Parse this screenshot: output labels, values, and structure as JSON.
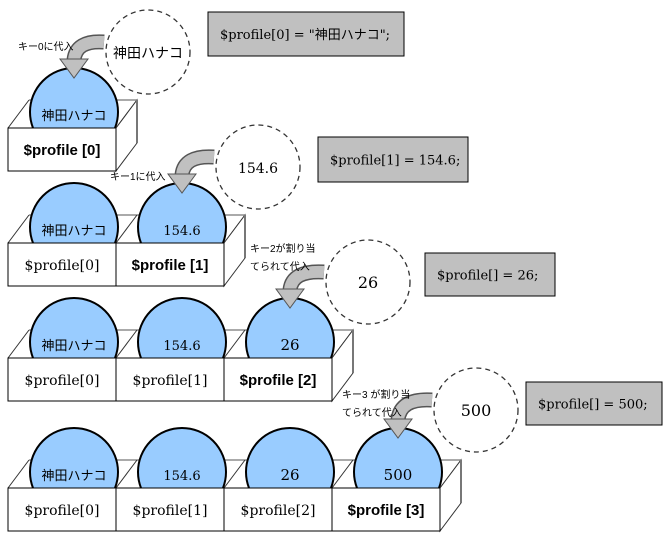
{
  "colors": {
    "ball": "#99ccff",
    "code_box": "#c0c0c0",
    "arrow": "#c0c0c0"
  },
  "steps": [
    {
      "code": "$profile[0] = \"神田ハナコ\";",
      "value": "神田ハナコ",
      "note": [
        "キー0に代入"
      ],
      "cells": [
        {
          "ball": "神田ハナコ",
          "label": "$profile [0]",
          "bold": true
        }
      ]
    },
    {
      "code": "$profile[1] = 154.6;",
      "value": "154.6",
      "note": [
        "キー1に代入"
      ],
      "cells": [
        {
          "ball": "神田ハナコ",
          "label": "$profile[0]",
          "bold": false
        },
        {
          "ball": "154.6",
          "label": "$profile [1]",
          "bold": true
        }
      ]
    },
    {
      "code": "$profile[] = 26;",
      "value": "26",
      "note": [
        "キー2が割り当",
        "てられて代入"
      ],
      "cells": [
        {
          "ball": "神田ハナコ",
          "label": "$profile[0]",
          "bold": false
        },
        {
          "ball": "154.6",
          "label": "$profile[1]",
          "bold": false
        },
        {
          "ball": "26",
          "label": "$profile [2]",
          "bold": true
        }
      ]
    },
    {
      "code": "$profile[] = 500;",
      "value": "500",
      "note": [
        "キー3 が割り当",
        "てられて代入"
      ],
      "cells": [
        {
          "ball": "神田ハナコ",
          "label": "$profile[0]",
          "bold": false
        },
        {
          "ball": "154.6",
          "label": "$profile[1]",
          "bold": false
        },
        {
          "ball": "26",
          "label": "$profile[2]",
          "bold": false
        },
        {
          "ball": "500",
          "label": "$profile [3]",
          "bold": true
        }
      ]
    }
  ]
}
